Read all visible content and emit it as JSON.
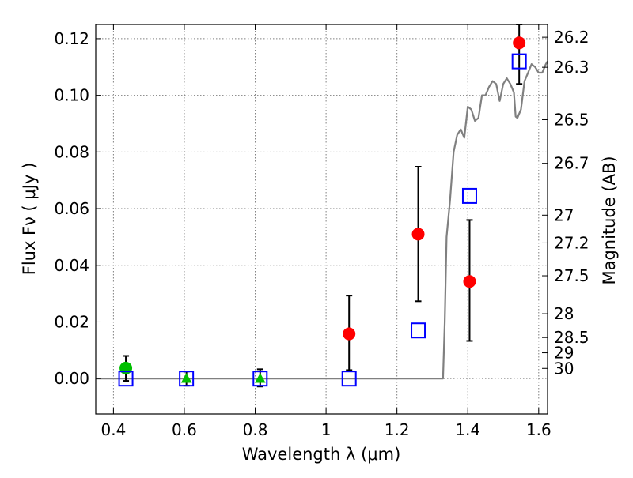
{
  "chart_data": {
    "type": "scatter",
    "xlabel": "Wavelength  λ (μm)",
    "ylabel": "Flux  Fν  ( μJy )",
    "y2label": "Magnitude (AB)",
    "xlim": [
      0.35,
      1.625
    ],
    "ylim": [
      -0.0125,
      0.125
    ],
    "x_ticks": [
      0.4,
      0.6,
      0.8,
      1.0,
      1.2,
      1.4,
      1.6
    ],
    "x_tick_labels": [
      "0.4",
      "0.6",
      "0.8",
      "1",
      "1.2",
      "1.4",
      "1.6"
    ],
    "y_ticks": [
      0.0,
      0.02,
      0.04,
      0.06,
      0.08,
      0.1,
      0.12
    ],
    "y_tick_labels": [
      "0.00",
      "0.02",
      "0.04",
      "0.06",
      "0.08",
      "0.10",
      "0.12"
    ],
    "mag_ticks": [
      {
        "label": "26.2",
        "flux": 0.1205
      },
      {
        "label": "26.3",
        "flux": 0.1099
      },
      {
        "label": "26.5",
        "flux": 0.0914
      },
      {
        "label": "26.7",
        "flux": 0.076
      },
      {
        "label": "27",
        "flux": 0.0577
      },
      {
        "label": "27.2",
        "flux": 0.0479
      },
      {
        "label": "27.5",
        "flux": 0.0363
      },
      {
        "label": "28",
        "flux": 0.0229
      },
      {
        "label": "28.5",
        "flux": 0.0145
      },
      {
        "label": "29",
        "flux": 0.0091
      },
      {
        "label": "30",
        "flux": 0.0036
      }
    ],
    "grid": true,
    "colors": {
      "red": "#ff0000",
      "green": "#00bf00",
      "blue": "#0000ff",
      "model": "#808080",
      "errorbar": "#000000",
      "grid": "#808080"
    },
    "series": [
      {
        "marker": "circle",
        "color": "red",
        "points": [
          {
            "x": 1.065,
            "y": 0.0158,
            "yerr_low": 0.0128,
            "yerr_high": 0.0135
          },
          {
            "x": 1.26,
            "y": 0.051,
            "yerr_low": 0.0237,
            "yerr_high": 0.0238
          },
          {
            "x": 1.405,
            "y": 0.0343,
            "yerr_low": 0.021,
            "yerr_high": 0.0217
          },
          {
            "x": 1.545,
            "y": 0.1185,
            "yerr_low": 0.0145,
            "yerr_high": 0.0065
          }
        ]
      },
      {
        "marker": "circle",
        "color": "green",
        "points": [
          {
            "x": 0.435,
            "y": 0.0037,
            "yerr_low": 0.0045,
            "yerr_high": 0.0043
          }
        ]
      },
      {
        "marker": "triangle",
        "color": "green",
        "points": [
          {
            "x": 0.606,
            "y": 0.0,
            "yerr_low": 0.0025,
            "yerr_high": 0.0025
          },
          {
            "x": 0.814,
            "y": 0.0,
            "yerr_low": 0.0028,
            "yerr_high": 0.0033
          }
        ]
      },
      {
        "marker": "open-square",
        "color": "blue",
        "points": [
          {
            "x": 0.435,
            "y": 0.0
          },
          {
            "x": 0.606,
            "y": 0.0
          },
          {
            "x": 0.814,
            "y": 0.0
          },
          {
            "x": 1.065,
            "y": 0.0
          },
          {
            "x": 1.26,
            "y": 0.017
          },
          {
            "x": 1.405,
            "y": 0.0645
          },
          {
            "x": 1.545,
            "y": 0.112
          }
        ]
      },
      {
        "marker": "line",
        "color": "model",
        "x": [
          0.35,
          1.33,
          1.335,
          1.34,
          1.35,
          1.36,
          1.37,
          1.38,
          1.39,
          1.4,
          1.41,
          1.42,
          1.43,
          1.44,
          1.45,
          1.46,
          1.47,
          1.48,
          1.49,
          1.5,
          1.51,
          1.52,
          1.53,
          1.535,
          1.54,
          1.55,
          1.56,
          1.57,
          1.58,
          1.59,
          1.6,
          1.61,
          1.62,
          1.625
        ],
        "y": [
          0.0,
          0.0,
          0.02,
          0.05,
          0.063,
          0.08,
          0.086,
          0.088,
          0.085,
          0.096,
          0.095,
          0.091,
          0.092,
          0.1,
          0.1,
          0.103,
          0.105,
          0.104,
          0.098,
          0.104,
          0.106,
          0.104,
          0.101,
          0.0925,
          0.092,
          0.095,
          0.105,
          0.108,
          0.111,
          0.11,
          0.108,
          0.108,
          0.111,
          0.112
        ]
      }
    ]
  }
}
